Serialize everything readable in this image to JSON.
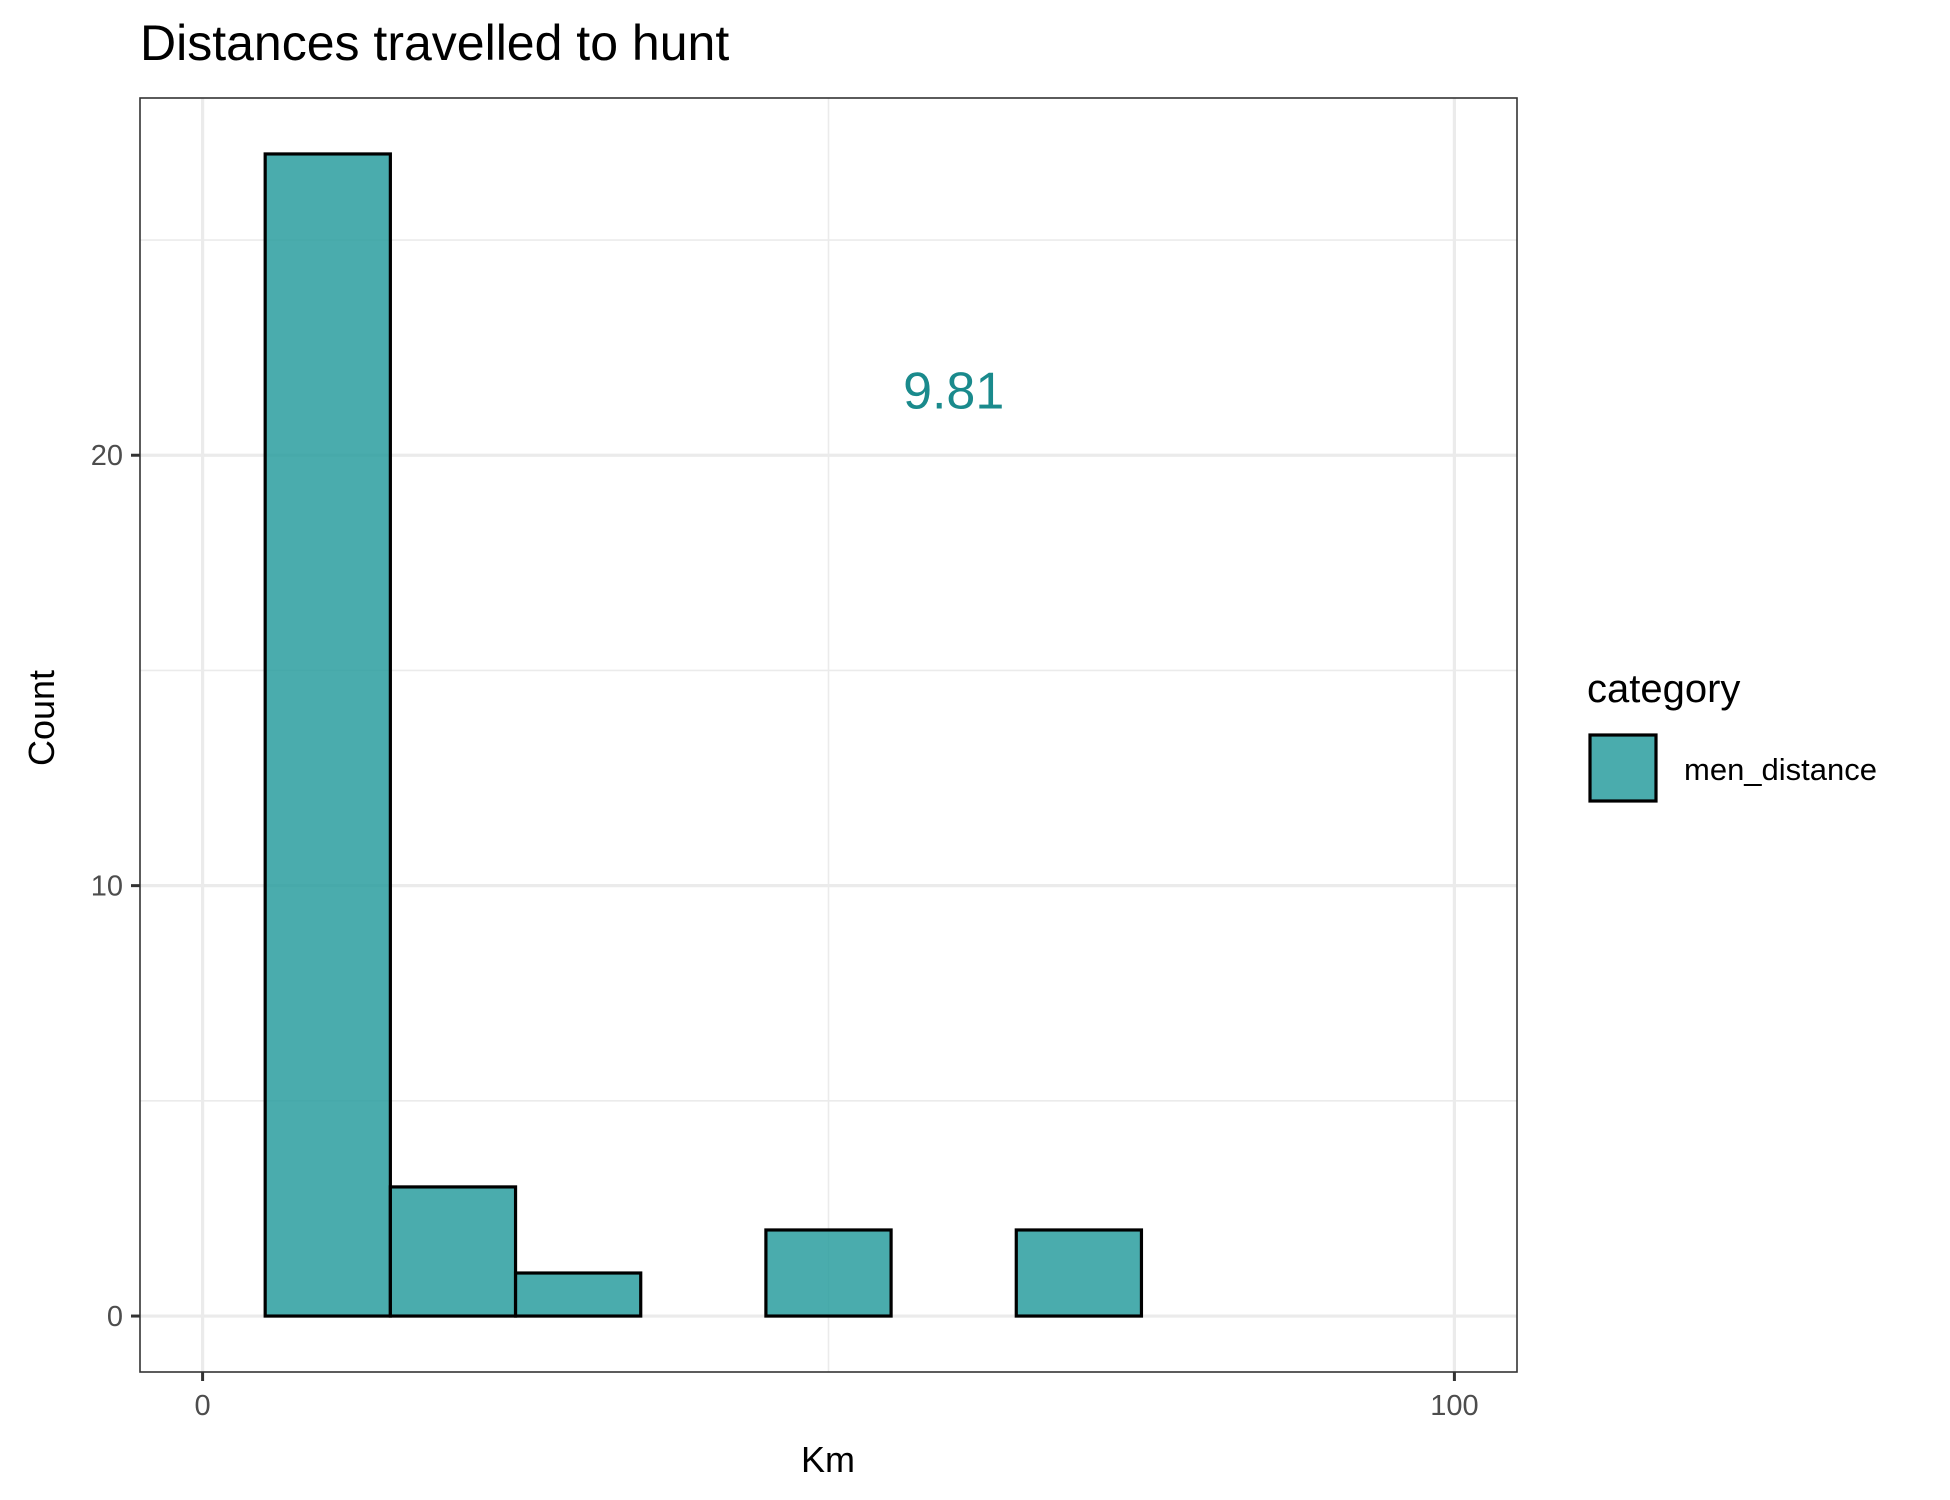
{
  "chart_data": {
    "type": "bar",
    "title": "Distances travelled to hunt",
    "xlabel": "Km",
    "ylabel": "Count",
    "xlim": [
      -5,
      105
    ],
    "ylim": [
      -1.3,
      28.3
    ],
    "x_ticks": [
      {
        "value": 0,
        "label": "0"
      },
      {
        "value": 100,
        "label": "100"
      }
    ],
    "y_ticks": [
      {
        "value": 0,
        "label": "0"
      },
      {
        "value": 10,
        "label": "10"
      },
      {
        "value": 20,
        "label": "20"
      }
    ],
    "x_minor_gridlines": [
      50
    ],
    "y_minor_gridlines": [
      5,
      15,
      25
    ],
    "grid": true,
    "bin_width": 10,
    "bins": [
      {
        "x_start": 5,
        "x_end": 15,
        "count": 27
      },
      {
        "x_start": 15,
        "x_end": 25,
        "count": 3
      },
      {
        "x_start": 25,
        "x_end": 35,
        "count": 1
      },
      {
        "x_start": 35,
        "x_end": 45,
        "count": 0
      },
      {
        "x_start": 45,
        "x_end": 55,
        "count": 2
      },
      {
        "x_start": 55,
        "x_end": 65,
        "count": 0
      },
      {
        "x_start": 65,
        "x_end": 75,
        "count": 2
      },
      {
        "x_start": 75,
        "x_end": 85,
        "count": 0
      },
      {
        "x_start": 85,
        "x_end": 95,
        "count": 0
      }
    ],
    "series": [
      {
        "name": "men_distance",
        "color": "#2a9d9f"
      }
    ],
    "legend": {
      "title": "category",
      "placement": "right"
    },
    "annotation": {
      "text": "9.81",
      "x": 60,
      "y": 21.5,
      "color": "#1a8a8c"
    }
  }
}
